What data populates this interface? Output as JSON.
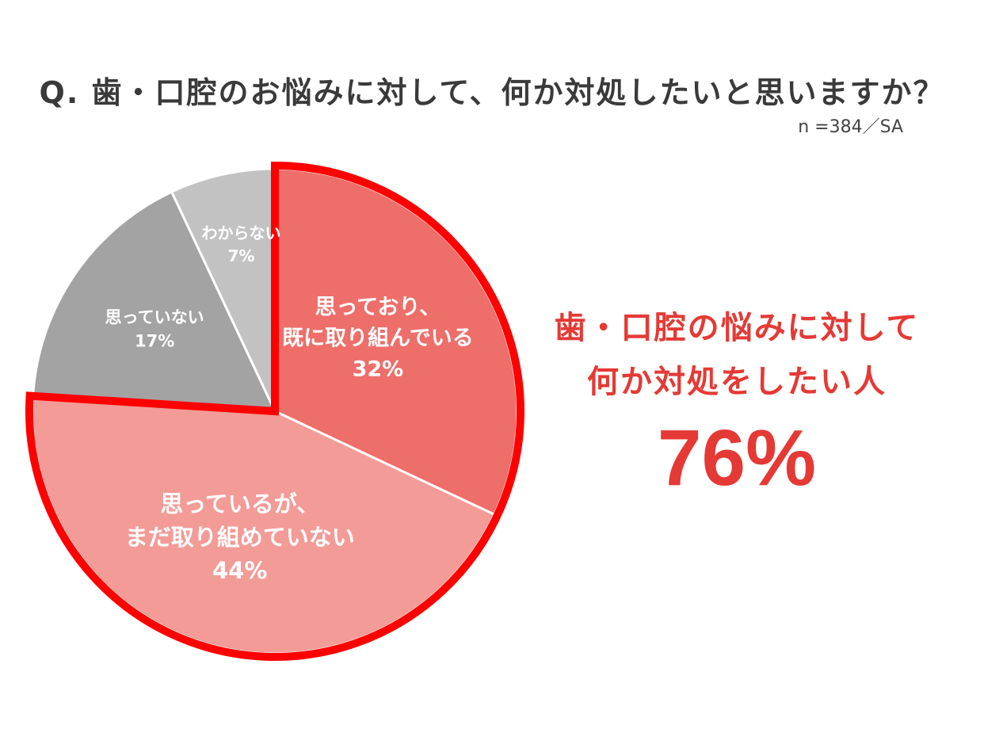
{
  "chart_data": {
    "type": "pie",
    "title": "Q. 歯・口腔のお悩みに対して、何か対処したいと思いますか？",
    "subtitle": "n =384／SA",
    "slices": [
      {
        "label_lines": [
          "思っており、",
          "既に取り組んでいる"
        ],
        "value": 32,
        "value_label": "32%",
        "color": "#ee6e6a"
      },
      {
        "label_lines": [
          "思っているが、",
          "まだ取り組めていない"
        ],
        "value": 44,
        "value_label": "44%",
        "color": "#f39b97"
      },
      {
        "label_lines": [
          "思っていない"
        ],
        "value": 17,
        "value_label": "17%",
        "color": "#a3a3a3"
      },
      {
        "label_lines": [
          "わからない"
        ],
        "value": 7,
        "value_label": "7%",
        "color": "#c2c2c2"
      }
    ],
    "highlight": {
      "slices": [
        0,
        1
      ],
      "outline_color": "#ff0000",
      "line1": "歯・口腔の悩みに対して",
      "line2": "何か対処をしたい人",
      "value_label": "76%",
      "color": "#e53935"
    }
  }
}
